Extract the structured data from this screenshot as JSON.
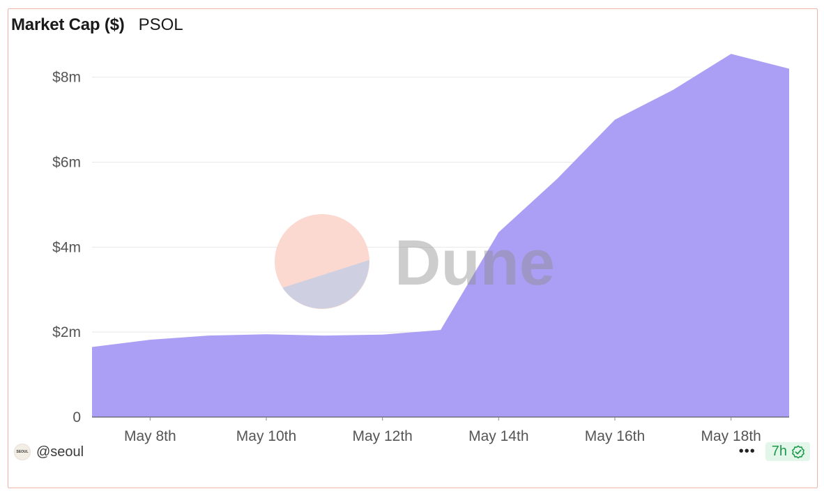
{
  "header": {
    "title": "Market Cap ($)",
    "subtitle": "PSOL"
  },
  "watermark": {
    "text": "Dune"
  },
  "footer": {
    "avatar_text": "SEOUL",
    "author": "@seoul",
    "more_label": "•••",
    "refresh_label": "7h",
    "icons": {
      "more": "ellipsis-icon",
      "verified": "verified-check-icon"
    }
  },
  "colors": {
    "area": "#ab9ff5",
    "grid": "#e8e8e8",
    "border": "#f3b3aa",
    "badge_bg": "#e3f6ea",
    "badge_text": "#1c9a4b"
  },
  "chart_data": {
    "type": "area",
    "title": "Market Cap ($)",
    "subtitle": "PSOL",
    "xlabel": "",
    "ylabel": "",
    "x": [
      "2024-05-07",
      "2024-05-08",
      "2024-05-09",
      "2024-05-10",
      "2024-05-11",
      "2024-05-12",
      "2024-05-13",
      "2024-05-14",
      "2024-05-15",
      "2024-05-16",
      "2024-05-17",
      "2024-05-18",
      "2024-05-19"
    ],
    "series": [
      {
        "values": [
          1650000,
          1820000,
          1920000,
          1950000,
          1920000,
          1940000,
          2050000,
          4350000,
          5600000,
          7000000,
          7700000,
          8550000,
          8200000
        ]
      }
    ],
    "x_ticks": [
      {
        "x": "2024-05-08",
        "label": "May 8th"
      },
      {
        "x": "2024-05-10",
        "label": "May 10th"
      },
      {
        "x": "2024-05-12",
        "label": "May 12th"
      },
      {
        "x": "2024-05-14",
        "label": "May 14th"
      },
      {
        "x": "2024-05-16",
        "label": "May 16th"
      },
      {
        "x": "2024-05-18",
        "label": "May 18th"
      }
    ],
    "y_ticks": [
      {
        "value": 0,
        "label": "0"
      },
      {
        "value": 2000000,
        "label": "$2m"
      },
      {
        "value": 4000000,
        "label": "$4m"
      },
      {
        "value": 6000000,
        "label": "$6m"
      },
      {
        "value": 8000000,
        "label": "$8m"
      }
    ],
    "ylim": [
      0,
      8800000
    ],
    "grid": true,
    "legend": "none"
  }
}
